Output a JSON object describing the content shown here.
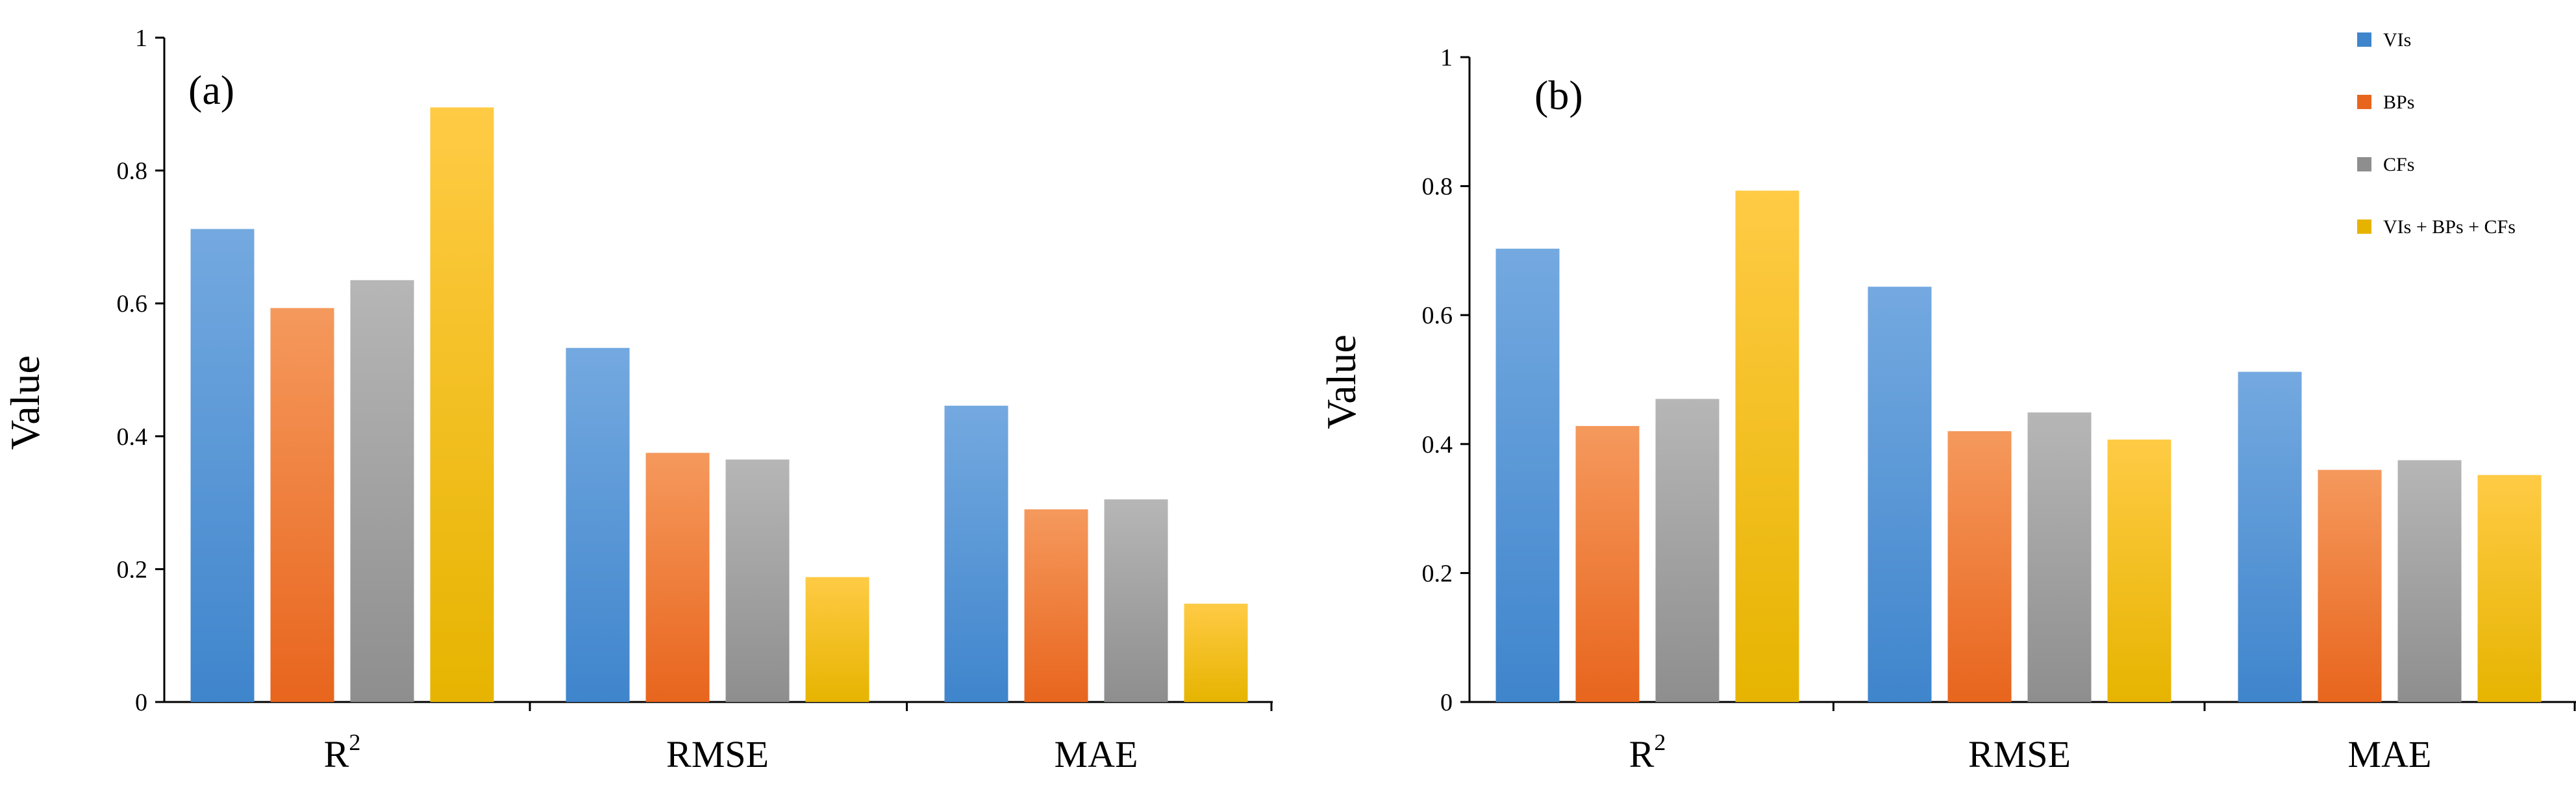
{
  "colors": {
    "VIs": [
      "#74a9e0",
      "#3f85cc"
    ],
    "BPs": [
      "#f5995d",
      "#e8651d"
    ],
    "CFs": [
      "#b6b6b6",
      "#8e8e8e"
    ],
    "VIs + BPs + CFs": [
      "#ffcb45",
      "#e6b400"
    ]
  },
  "legend": {
    "position": "top-right of panel (b)",
    "items": [
      "VIs",
      "BPs",
      "CFs",
      "VIs + BPs + CFs"
    ]
  },
  "chart_data": [
    {
      "type": "bar",
      "panel_label": "(a)",
      "ylabel": "Value",
      "ylim": [
        0,
        1
      ],
      "yticks": [
        "0",
        "0.2",
        "0.4",
        "0.6",
        "0.8",
        "1"
      ],
      "categories": [
        {
          "base": "R",
          "sup": "2"
        },
        {
          "base": "RMSE",
          "sup": ""
        },
        {
          "base": "MAE",
          "sup": ""
        }
      ],
      "series": [
        {
          "name": "VIs",
          "values": [
            0.712,
            0.533,
            0.446
          ]
        },
        {
          "name": "BPs",
          "values": [
            0.593,
            0.375,
            0.29
          ]
        },
        {
          "name": "CFs",
          "values": [
            0.635,
            0.365,
            0.305
          ]
        },
        {
          "name": "VIs + BPs + CFs",
          "values": [
            0.895,
            0.188,
            0.148
          ]
        }
      ]
    },
    {
      "type": "bar",
      "panel_label": "(b)",
      "ylabel": "Value",
      "ylim": [
        0,
        1
      ],
      "yticks": [
        "0",
        "0.2",
        "0.4",
        "0.6",
        "0.8",
        "1"
      ],
      "categories": [
        {
          "base": "R",
          "sup": "2"
        },
        {
          "base": "RMSE",
          "sup": ""
        },
        {
          "base": "MAE",
          "sup": ""
        }
      ],
      "series": [
        {
          "name": "VIs",
          "values": [
            0.703,
            0.644,
            0.512
          ]
        },
        {
          "name": "BPs",
          "values": [
            0.428,
            0.42,
            0.36
          ]
        },
        {
          "name": "CFs",
          "values": [
            0.47,
            0.449,
            0.375
          ]
        },
        {
          "name": "VIs + BPs + CFs",
          "values": [
            0.793,
            0.407,
            0.352
          ]
        }
      ]
    }
  ]
}
